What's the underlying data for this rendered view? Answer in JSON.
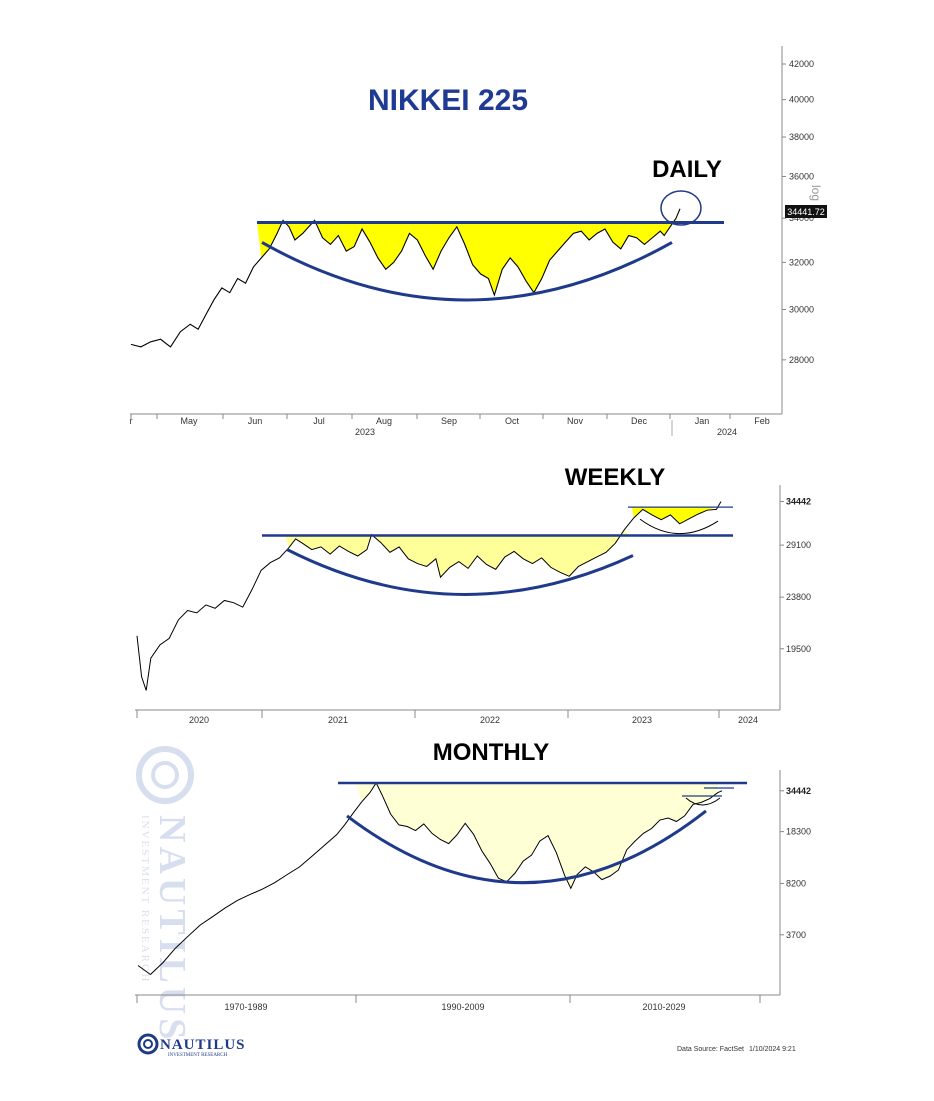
{
  "title": "NIKKEI 225",
  "colors": {
    "title": "#1f3a93",
    "pattern": "#1f3a8a",
    "fill_daily": "#ffff00",
    "fill_weekly": "#ffff99",
    "fill_monthly": "#ffffd6",
    "price": "#000000"
  },
  "footer": {
    "source": "Data Source: FactSet",
    "timestamp": "1/10/2024 9:21",
    "logo_name": "NAUTILUS",
    "logo_sub": "INVESTMENT RESEARCH"
  },
  "watermark": {
    "name": "NAUTILUS",
    "sub": "INVESTMENT RESEARCH"
  },
  "chart_data": [
    {
      "type": "line",
      "title": "DAILY",
      "scale": "log",
      "axis_label": "log",
      "last_value": "34441.72",
      "y_ticks": [
        "42000",
        "40000",
        "38000",
        "36000",
        "34000",
        "32000",
        "30000",
        "28000"
      ],
      "x_months": [
        "r",
        "May",
        "Jun",
        "Jul",
        "Aug",
        "Sep",
        "Oct",
        "Nov",
        "Dec",
        "Jan",
        "Feb"
      ],
      "x_years": [
        "2023",
        "2024"
      ],
      "series": [
        {
          "values": [
            [
              0,
              28600
            ],
            [
              0.5,
              28500
            ],
            [
              1,
              28700
            ],
            [
              1.5,
              28800
            ],
            [
              2,
              28500
            ],
            [
              2.5,
              29100
            ],
            [
              3,
              29400
            ],
            [
              3.4,
              29200
            ],
            [
              3.8,
              29800
            ],
            [
              4.2,
              30400
            ],
            [
              4.6,
              30900
            ],
            [
              5.0,
              30700
            ],
            [
              5.4,
              31300
            ],
            [
              5.8,
              31100
            ],
            [
              6.2,
              31800
            ],
            [
              6.6,
              32200
            ],
            [
              7.0,
              32600
            ],
            [
              7.4,
              33300
            ],
            [
              7.7,
              33900
            ],
            [
              8.0,
              33600
            ],
            [
              8.3,
              33000
            ],
            [
              8.7,
              33300
            ],
            [
              9.0,
              33600
            ],
            [
              9.3,
              33900
            ],
            [
              9.7,
              33100
            ],
            [
              10.1,
              32800
            ],
            [
              10.5,
              33200
            ],
            [
              10.9,
              32500
            ],
            [
              11.3,
              32700
            ],
            [
              11.7,
              33500
            ],
            [
              12.1,
              32900
            ],
            [
              12.5,
              32200
            ],
            [
              12.9,
              31700
            ],
            [
              13.3,
              32000
            ],
            [
              13.7,
              32500
            ],
            [
              14.1,
              33300
            ],
            [
              14.5,
              33000
            ],
            [
              14.9,
              32300
            ],
            [
              15.3,
              31700
            ],
            [
              15.7,
              32500
            ],
            [
              16.1,
              33100
            ],
            [
              16.5,
              33600
            ],
            [
              16.9,
              32800
            ],
            [
              17.3,
              31900
            ],
            [
              17.7,
              31500
            ],
            [
              18.1,
              31300
            ],
            [
              18.4,
              30600
            ],
            [
              18.8,
              31700
            ],
            [
              19.2,
              32200
            ],
            [
              19.6,
              31800
            ],
            [
              20.0,
              31200
            ],
            [
              20.4,
              30700
            ],
            [
              20.8,
              31300
            ],
            [
              21.2,
              32100
            ],
            [
              21.6,
              32500
            ],
            [
              22.0,
              32900
            ],
            [
              22.4,
              33300
            ],
            [
              22.8,
              33400
            ],
            [
              23.2,
              33000
            ],
            [
              23.6,
              33300
            ],
            [
              24.0,
              33500
            ],
            [
              24.4,
              32900
            ],
            [
              24.8,
              32600
            ],
            [
              25.2,
              33200
            ],
            [
              25.6,
              33100
            ],
            [
              26.0,
              32800
            ],
            [
              26.4,
              33100
            ],
            [
              26.8,
              33400
            ],
            [
              27.0,
              33200
            ],
            [
              27.3,
              33600
            ],
            [
              27.6,
              34000
            ],
            [
              27.8,
              34442
            ]
          ]
        }
      ],
      "resistance": 33800,
      "bowl_min": 30500
    },
    {
      "type": "line",
      "title": "WEEKLY",
      "scale": "log",
      "last_value": "34442",
      "y_ticks": [
        "34442",
        "29100",
        "23800",
        "19500"
      ],
      "x_years": [
        "2020",
        "2021",
        "2022",
        "2023",
        "2024"
      ],
      "series": [
        {
          "values": [
            [
              0,
              20500
            ],
            [
              0.1,
              17500
            ],
            [
              0.2,
              16600
            ],
            [
              0.3,
              18800
            ],
            [
              0.5,
              19800
            ],
            [
              0.7,
              20300
            ],
            [
              0.9,
              21800
            ],
            [
              1.1,
              22600
            ],
            [
              1.3,
              22400
            ],
            [
              1.5,
              23100
            ],
            [
              1.7,
              22800
            ],
            [
              1.9,
              23500
            ],
            [
              2.1,
              23300
            ],
            [
              2.3,
              22900
            ],
            [
              2.5,
              24500
            ],
            [
              2.7,
              26400
            ],
            [
              2.9,
              27200
            ],
            [
              3.1,
              27700
            ],
            [
              3.3,
              28800
            ],
            [
              3.45,
              29800
            ],
            [
              3.6,
              29300
            ],
            [
              3.8,
              28600
            ],
            [
              4.0,
              28900
            ],
            [
              4.2,
              28100
            ],
            [
              4.4,
              29000
            ],
            [
              4.6,
              28400
            ],
            [
              4.8,
              27900
            ],
            [
              5.0,
              28600
            ],
            [
              5.1,
              30300
            ],
            [
              5.3,
              29400
            ],
            [
              5.5,
              28300
            ],
            [
              5.7,
              28900
            ],
            [
              5.9,
              27600
            ],
            [
              6.1,
              27100
            ],
            [
              6.3,
              26800
            ],
            [
              6.5,
              27600
            ],
            [
              6.6,
              25700
            ],
            [
              6.8,
              26700
            ],
            [
              7.0,
              27300
            ],
            [
              7.2,
              26600
            ],
            [
              7.4,
              27900
            ],
            [
              7.6,
              27000
            ],
            [
              7.8,
              26500
            ],
            [
              8.0,
              27800
            ],
            [
              8.2,
              28400
            ],
            [
              8.4,
              27600
            ],
            [
              8.6,
              27100
            ],
            [
              8.8,
              27700
            ],
            [
              9.0,
              26700
            ],
            [
              9.2,
              26200
            ],
            [
              9.4,
              25800
            ],
            [
              9.6,
              26800
            ],
            [
              9.8,
              27300
            ],
            [
              10.0,
              27800
            ],
            [
              10.2,
              28300
            ],
            [
              10.4,
              29300
            ],
            [
              10.6,
              30900
            ],
            [
              10.8,
              32300
            ],
            [
              11.0,
              33400
            ],
            [
              11.2,
              32700
            ],
            [
              11.4,
              32100
            ],
            [
              11.6,
              32700
            ],
            [
              11.8,
              31600
            ],
            [
              12.0,
              32200
            ],
            [
              12.2,
              32800
            ],
            [
              12.4,
              33300
            ],
            [
              12.6,
              33400
            ],
            [
              12.7,
              34442
            ]
          ]
        }
      ],
      "resistance": 30200,
      "resistance2": 33700,
      "bowl_min": 25300
    },
    {
      "type": "line",
      "title": "MONTHLY",
      "scale": "log",
      "last_value": "34442",
      "y_ticks": [
        "34442",
        "18300",
        "8200",
        "3700"
      ],
      "x_groups": [
        "1970-1989",
        "1990-2009",
        "2010-2029"
      ],
      "series": [
        {
          "values": [
            [
              0,
              2300
            ],
            [
              0.3,
              2000
            ],
            [
              0.6,
              2400
            ],
            [
              0.9,
              3000
            ],
            [
              1.2,
              3600
            ],
            [
              1.5,
              4300
            ],
            [
              1.8,
              4900
            ],
            [
              2.1,
              5600
            ],
            [
              2.4,
              6300
            ],
            [
              2.7,
              6900
            ],
            [
              3.0,
              7500
            ],
            [
              3.3,
              8300
            ],
            [
              3.6,
              9400
            ],
            [
              3.9,
              10600
            ],
            [
              4.2,
              12500
            ],
            [
              4.5,
              14800
            ],
            [
              4.8,
              17500
            ],
            [
              5.0,
              20500
            ],
            [
              5.2,
              24500
            ],
            [
              5.4,
              29000
            ],
            [
              5.6,
              33500
            ],
            [
              5.75,
              38900
            ],
            [
              5.9,
              32000
            ],
            [
              6.1,
              24000
            ],
            [
              6.3,
              20300
            ],
            [
              6.5,
              19800
            ],
            [
              6.7,
              18600
            ],
            [
              6.9,
              20600
            ],
            [
              7.1,
              17800
            ],
            [
              7.3,
              16200
            ],
            [
              7.5,
              15200
            ],
            [
              7.7,
              17400
            ],
            [
              7.9,
              20800
            ],
            [
              8.1,
              17600
            ],
            [
              8.3,
              13600
            ],
            [
              8.5,
              11200
            ],
            [
              8.7,
              8900
            ],
            [
              8.9,
              8400
            ],
            [
              9.1,
              9600
            ],
            [
              9.3,
              11600
            ],
            [
              9.5,
              12700
            ],
            [
              9.7,
              15800
            ],
            [
              9.9,
              17200
            ],
            [
              10.1,
              13200
            ],
            [
              10.3,
              9300
            ],
            [
              10.45,
              7600
            ],
            [
              10.6,
              9400
            ],
            [
              10.8,
              10600
            ],
            [
              11.0,
              9800
            ],
            [
              11.2,
              8700
            ],
            [
              11.4,
              9200
            ],
            [
              11.6,
              10100
            ],
            [
              11.8,
              13800
            ],
            [
              12.0,
              15800
            ],
            [
              12.2,
              17800
            ],
            [
              12.4,
              19200
            ],
            [
              12.6,
              21900
            ],
            [
              12.8,
              22600
            ],
            [
              13.0,
              21400
            ],
            [
              13.2,
              23400
            ],
            [
              13.4,
              27900
            ],
            [
              13.6,
              28800
            ],
            [
              13.8,
              30500
            ],
            [
              14.0,
              33500
            ],
            [
              14.1,
              34442
            ]
          ]
        }
      ],
      "resistance": 38900,
      "bowl_min": 7200
    }
  ]
}
